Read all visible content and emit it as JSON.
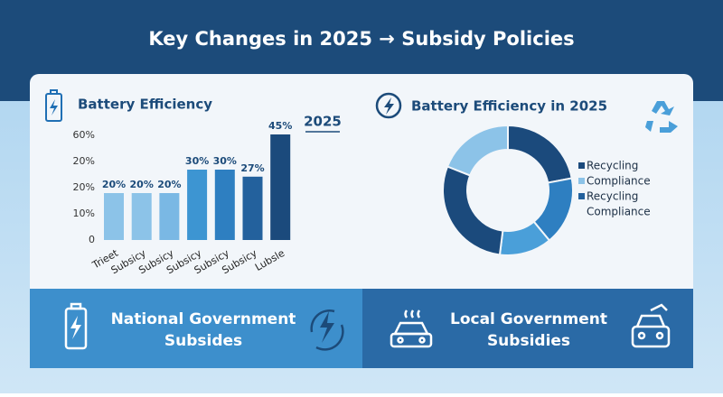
{
  "title": "Key Changes in 2025 → Subsidy Policies",
  "chart_data": [
    {
      "type": "bar",
      "title": "Battery Efficiency",
      "annotation": "2025",
      "categories": [
        "Trieet",
        "Subsicy",
        "Subsicy",
        "Subsicy",
        "Subsicy",
        "Subsicy",
        "Lubsle"
      ],
      "values": [
        20,
        20,
        20,
        30,
        30,
        27,
        45
      ],
      "value_labels": [
        "20%",
        "20%",
        "20%",
        "30%",
        "30%",
        "27%",
        "45%"
      ],
      "colors": [
        "#8cc3e8",
        "#8cc3e8",
        "#7ab8e4",
        "#3d95d2",
        "#2e7fc1",
        "#23619d",
        "#1b4a7c"
      ],
      "ylim": [
        0,
        50
      ],
      "yticks": [
        0,
        {
          "value": 10,
          "label": "10%"
        },
        {
          "value": 20,
          "label": "20%"
        },
        {
          "value": 20,
          "label": "20%"
        },
        {
          "value": 60,
          "label": "60%"
        }
      ]
    },
    {
      "type": "pie",
      "title": "Battery Efficiency in 2025",
      "values": [
        22,
        17,
        13,
        29,
        19
      ],
      "colors": [
        "#1b4a7c",
        "#2e7fc1",
        "#4a9fd9",
        "#1b4a7c",
        "#8cc3e8"
      ],
      "legend": [
        {
          "name": "Recycling",
          "color": "#1b4a7c"
        },
        {
          "name": "Compliance",
          "color": "#8cc3e8"
        },
        {
          "name": "Recycling",
          "color": "#23619d"
        },
        {
          "name": "Compliance",
          "color": null
        }
      ]
    }
  ],
  "banners": [
    {
      "label": "National Government Subsides"
    },
    {
      "label": "Local Government Subsidies"
    }
  ]
}
